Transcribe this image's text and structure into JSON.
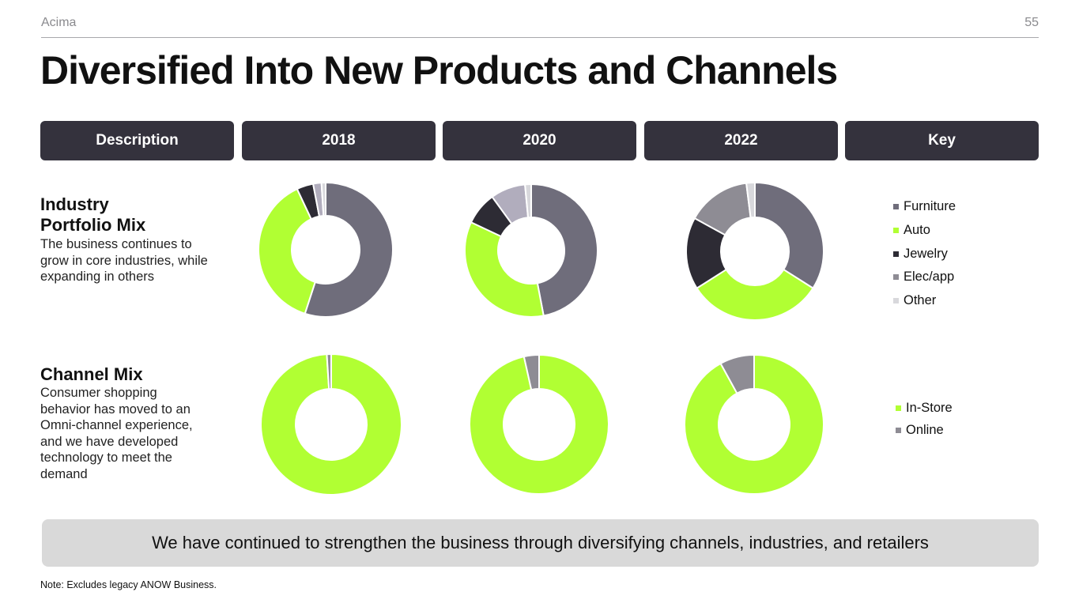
{
  "header": {
    "brand": "Acima",
    "page_number": "55"
  },
  "title": "Diversified Into New Products and Channels",
  "columns": [
    "Description",
    "2018",
    "2020",
    "2022",
    "Key"
  ],
  "rows": {
    "industry": {
      "title_line1": "Industry",
      "title_line2": "Portfolio Mix",
      "description": "The business continues to grow in core industries, while expanding in others"
    },
    "channel": {
      "title": "Channel Mix",
      "description": "Consumer shopping behavior has moved to an Omni-channel experience, and we have developed technology to meet the demand"
    }
  },
  "legend": {
    "industry": [
      {
        "label": "Furniture",
        "color": "#6f6d7b"
      },
      {
        "label": "Auto",
        "color": "#b1ff33"
      },
      {
        "label": "Jewelry",
        "color": "#2d2b34"
      },
      {
        "label": "Elec/app",
        "color": "#8e8c94"
      },
      {
        "label": "Other",
        "color": "#d8d8dc"
      }
    ],
    "channel": [
      {
        "label": "In-Store",
        "color": "#b1ff33"
      },
      {
        "label": "Online",
        "color": "#8e8c94"
      }
    ]
  },
  "chart_data": [
    {
      "type": "pie",
      "title": "Industry Portfolio Mix 2018",
      "categories": [
        "Furniture",
        "Auto",
        "Jewelry",
        "Elec/app",
        "Other"
      ],
      "values": [
        55,
        38,
        4,
        2,
        1
      ],
      "colors": [
        "#6f6d7b",
        "#b1ff33",
        "#2d2b34",
        "#b1adbd",
        "#d8d8dc"
      ]
    },
    {
      "type": "pie",
      "title": "Industry Portfolio Mix 2020",
      "categories": [
        "Furniture",
        "Auto",
        "Jewelry",
        "Elec/app",
        "Other"
      ],
      "values": [
        47,
        35,
        8,
        8.5,
        1.5
      ],
      "colors": [
        "#6f6d7b",
        "#b1ff33",
        "#2d2b34",
        "#b1adbd",
        "#d8d8dc"
      ]
    },
    {
      "type": "pie",
      "title": "Industry Portfolio Mix 2022",
      "categories": [
        "Furniture",
        "Auto",
        "Jewelry",
        "Elec/app",
        "Other"
      ],
      "values": [
        34,
        32,
        17,
        15,
        2
      ],
      "colors": [
        "#6f6d7b",
        "#b1ff33",
        "#2d2b34",
        "#8e8c94",
        "#d8d8dc"
      ]
    },
    {
      "type": "pie",
      "title": "Channel Mix 2018",
      "categories": [
        "In-Store",
        "Online"
      ],
      "values": [
        99,
        1
      ],
      "colors": [
        "#b1ff33",
        "#8e8c94"
      ]
    },
    {
      "type": "pie",
      "title": "Channel Mix 2020",
      "categories": [
        "In-Store",
        "Online"
      ],
      "values": [
        96.5,
        3.5
      ],
      "colors": [
        "#b1ff33",
        "#8e8c94"
      ]
    },
    {
      "type": "pie",
      "title": "Channel Mix 2022",
      "categories": [
        "In-Store",
        "Online"
      ],
      "values": [
        92,
        8
      ],
      "colors": [
        "#b1ff33",
        "#8e8c94"
      ]
    }
  ],
  "banner": "We have continued to strengthen the business through diversifying channels, industries, and retailers",
  "note": "Note: Excludes legacy ANOW Business."
}
